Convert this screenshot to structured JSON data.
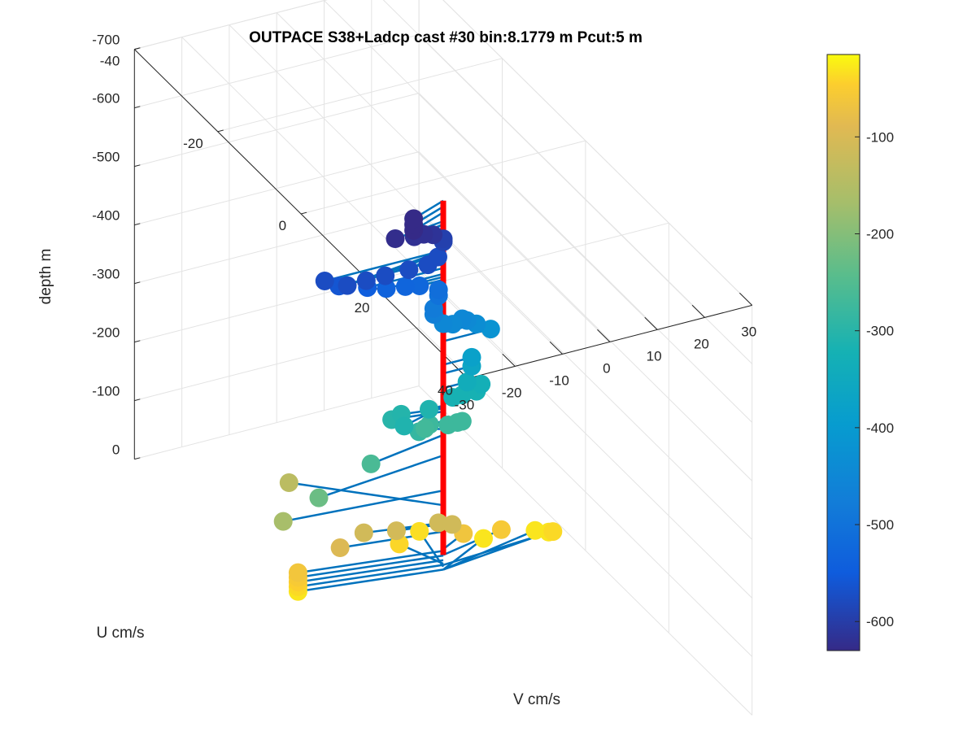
{
  "chart_data": {
    "type": "scatter3d",
    "title": "OUTPACE S38+Ladcp cast #30 bin:8.1779 m  Pcut:5 m",
    "xlabel": "V cm/s",
    "ylabel": "U cm/s",
    "zlabel": "depth m",
    "xlim": [
      -30,
      30
    ],
    "ylim": [
      -40,
      40
    ],
    "zlim": [
      -700,
      0
    ],
    "xticks": [
      "-30",
      "-20",
      "-10",
      "0",
      "10",
      "20",
      "30"
    ],
    "yticks": [
      "-40",
      "-20",
      "0",
      "20",
      "40"
    ],
    "zticks": [
      "0",
      "-100",
      "-200",
      "-300",
      "-400",
      "-500",
      "-600",
      "-700"
    ],
    "grid": true,
    "colorbar": {
      "position": "right",
      "colormap": "parula",
      "ticks": [
        "-100",
        "-200",
        "-300",
        "-400",
        "-500",
        "-600"
      ],
      "range": [
        -630,
        -15
      ]
    },
    "series": [
      {
        "color": "#0072bd",
        "style": "stem lines from profile axis (u=0, v=0) to each point"
      },
      {
        "color": "#ff0000",
        "style": "vertical profile axis at u=0, v=0"
      }
    ],
    "points": [
      {
        "v": -28,
        "u": -3,
        "depth": -30
      },
      {
        "v": -28,
        "u": -3,
        "depth": -38
      },
      {
        "v": -28,
        "u": -3,
        "depth": -46
      },
      {
        "v": -28,
        "u": -3,
        "depth": -54
      },
      {
        "v": -28,
        "u": -3,
        "depth": -62
      },
      {
        "v": -4,
        "u": -6,
        "depth": -40
      },
      {
        "v": 2,
        "u": -8,
        "depth": -35
      },
      {
        "v": 12,
        "u": -4,
        "depth": -30
      },
      {
        "v": 22,
        "u": -3,
        "depth": -30
      },
      {
        "v": 24,
        "u": -2,
        "depth": -30
      },
      {
        "v": 24,
        "u": -1,
        "depth": -38
      },
      {
        "v": 14,
        "u": -2,
        "depth": -55
      },
      {
        "v": 6,
        "u": -2,
        "depth": -65
      },
      {
        "v": -20,
        "u": -2,
        "depth": -95
      },
      {
        "v": -15,
        "u": -2,
        "depth": -110
      },
      {
        "v": -9,
        "u": -1,
        "depth": -108
      },
      {
        "v": -1,
        "u": 0,
        "depth": -112
      },
      {
        "v": 1,
        "u": 1,
        "depth": -112
      },
      {
        "v": -22,
        "u": -12,
        "depth": -140
      },
      {
        "v": -32,
        "u": -2,
        "depth": -165
      },
      {
        "v": -28,
        "u": 2,
        "depth": -225
      },
      {
        "v": -17,
        "u": 2,
        "depth": -260
      },
      {
        "v": -6,
        "u": 1,
        "depth": -285
      },
      {
        "v": -2,
        "u": -1,
        "depth": -275
      },
      {
        "v": 1,
        "u": 0,
        "depth": -275
      },
      {
        "v": 3,
        "u": 0,
        "depth": -275
      },
      {
        "v": 4,
        "u": 0,
        "depth": -275
      },
      {
        "v": -3,
        "u": -1,
        "depth": -270
      },
      {
        "v": -10,
        "u": -1,
        "depth": -300
      },
      {
        "v": -8,
        "u": -1,
        "depth": -305
      },
      {
        "v": -10,
        "u": 2,
        "depth": -310
      },
      {
        "v": -3,
        "u": 0,
        "depth": -310
      },
      {
        "v": 2,
        "u": 0,
        "depth": -320
      },
      {
        "v": 4,
        "u": 0,
        "depth": -320
      },
      {
        "v": 7,
        "u": 0,
        "depth": -320
      },
      {
        "v": 8,
        "u": 0,
        "depth": -330
      },
      {
        "v": 5,
        "u": 0,
        "depth": -340
      },
      {
        "v": 6,
        "u": 0,
        "depth": -365
      },
      {
        "v": 6,
        "u": 0,
        "depth": -380
      },
      {
        "v": 10,
        "u": 0,
        "depth": -420
      },
      {
        "v": 7,
        "u": 0,
        "depth": -435
      },
      {
        "v": 5,
        "u": 0,
        "depth": -445
      },
      {
        "v": 4,
        "u": 0,
        "depth": -450
      },
      {
        "v": 2,
        "u": 0,
        "depth": -445
      },
      {
        "v": 0,
        "u": 0,
        "depth": -450
      },
      {
        "v": -2,
        "u": 0,
        "depth": -470
      },
      {
        "v": -2,
        "u": 0,
        "depth": -480
      },
      {
        "v": -1,
        "u": 0,
        "depth": -500
      },
      {
        "v": -1,
        "u": 0,
        "depth": -510
      },
      {
        "v": -5,
        "u": 0,
        "depth": -525
      },
      {
        "v": -8,
        "u": 0,
        "depth": -530
      },
      {
        "v": -12,
        "u": 0,
        "depth": -535
      },
      {
        "v": -16,
        "u": 0,
        "depth": -545
      },
      {
        "v": -22,
        "u": 0,
        "depth": -560
      },
      {
        "v": -25,
        "u": 0,
        "depth": -575
      },
      {
        "v": -22,
        "u": 2,
        "depth": -575
      },
      {
        "v": -18,
        "u": 2,
        "depth": -575
      },
      {
        "v": -14,
        "u": 2,
        "depth": -575
      },
      {
        "v": -9,
        "u": 2,
        "depth": -575
      },
      {
        "v": -5,
        "u": 2,
        "depth": -575
      },
      {
        "v": -2,
        "u": 1,
        "depth": -575
      },
      {
        "v": 0,
        "u": 0,
        "depth": -590
      },
      {
        "v": 0,
        "u": 0,
        "depth": -595
      },
      {
        "v": -3,
        "u": 1,
        "depth": -615
      },
      {
        "v": -5,
        "u": 1,
        "depth": -620
      },
      {
        "v": -7,
        "u": 1,
        "depth": -620
      },
      {
        "v": -11,
        "u": 1,
        "depth": -625
      },
      {
        "v": -8,
        "u": 2,
        "depth": -640
      },
      {
        "v": -8,
        "u": 2,
        "depth": -650
      },
      {
        "v": -8,
        "u": 2,
        "depth": -660
      }
    ]
  }
}
